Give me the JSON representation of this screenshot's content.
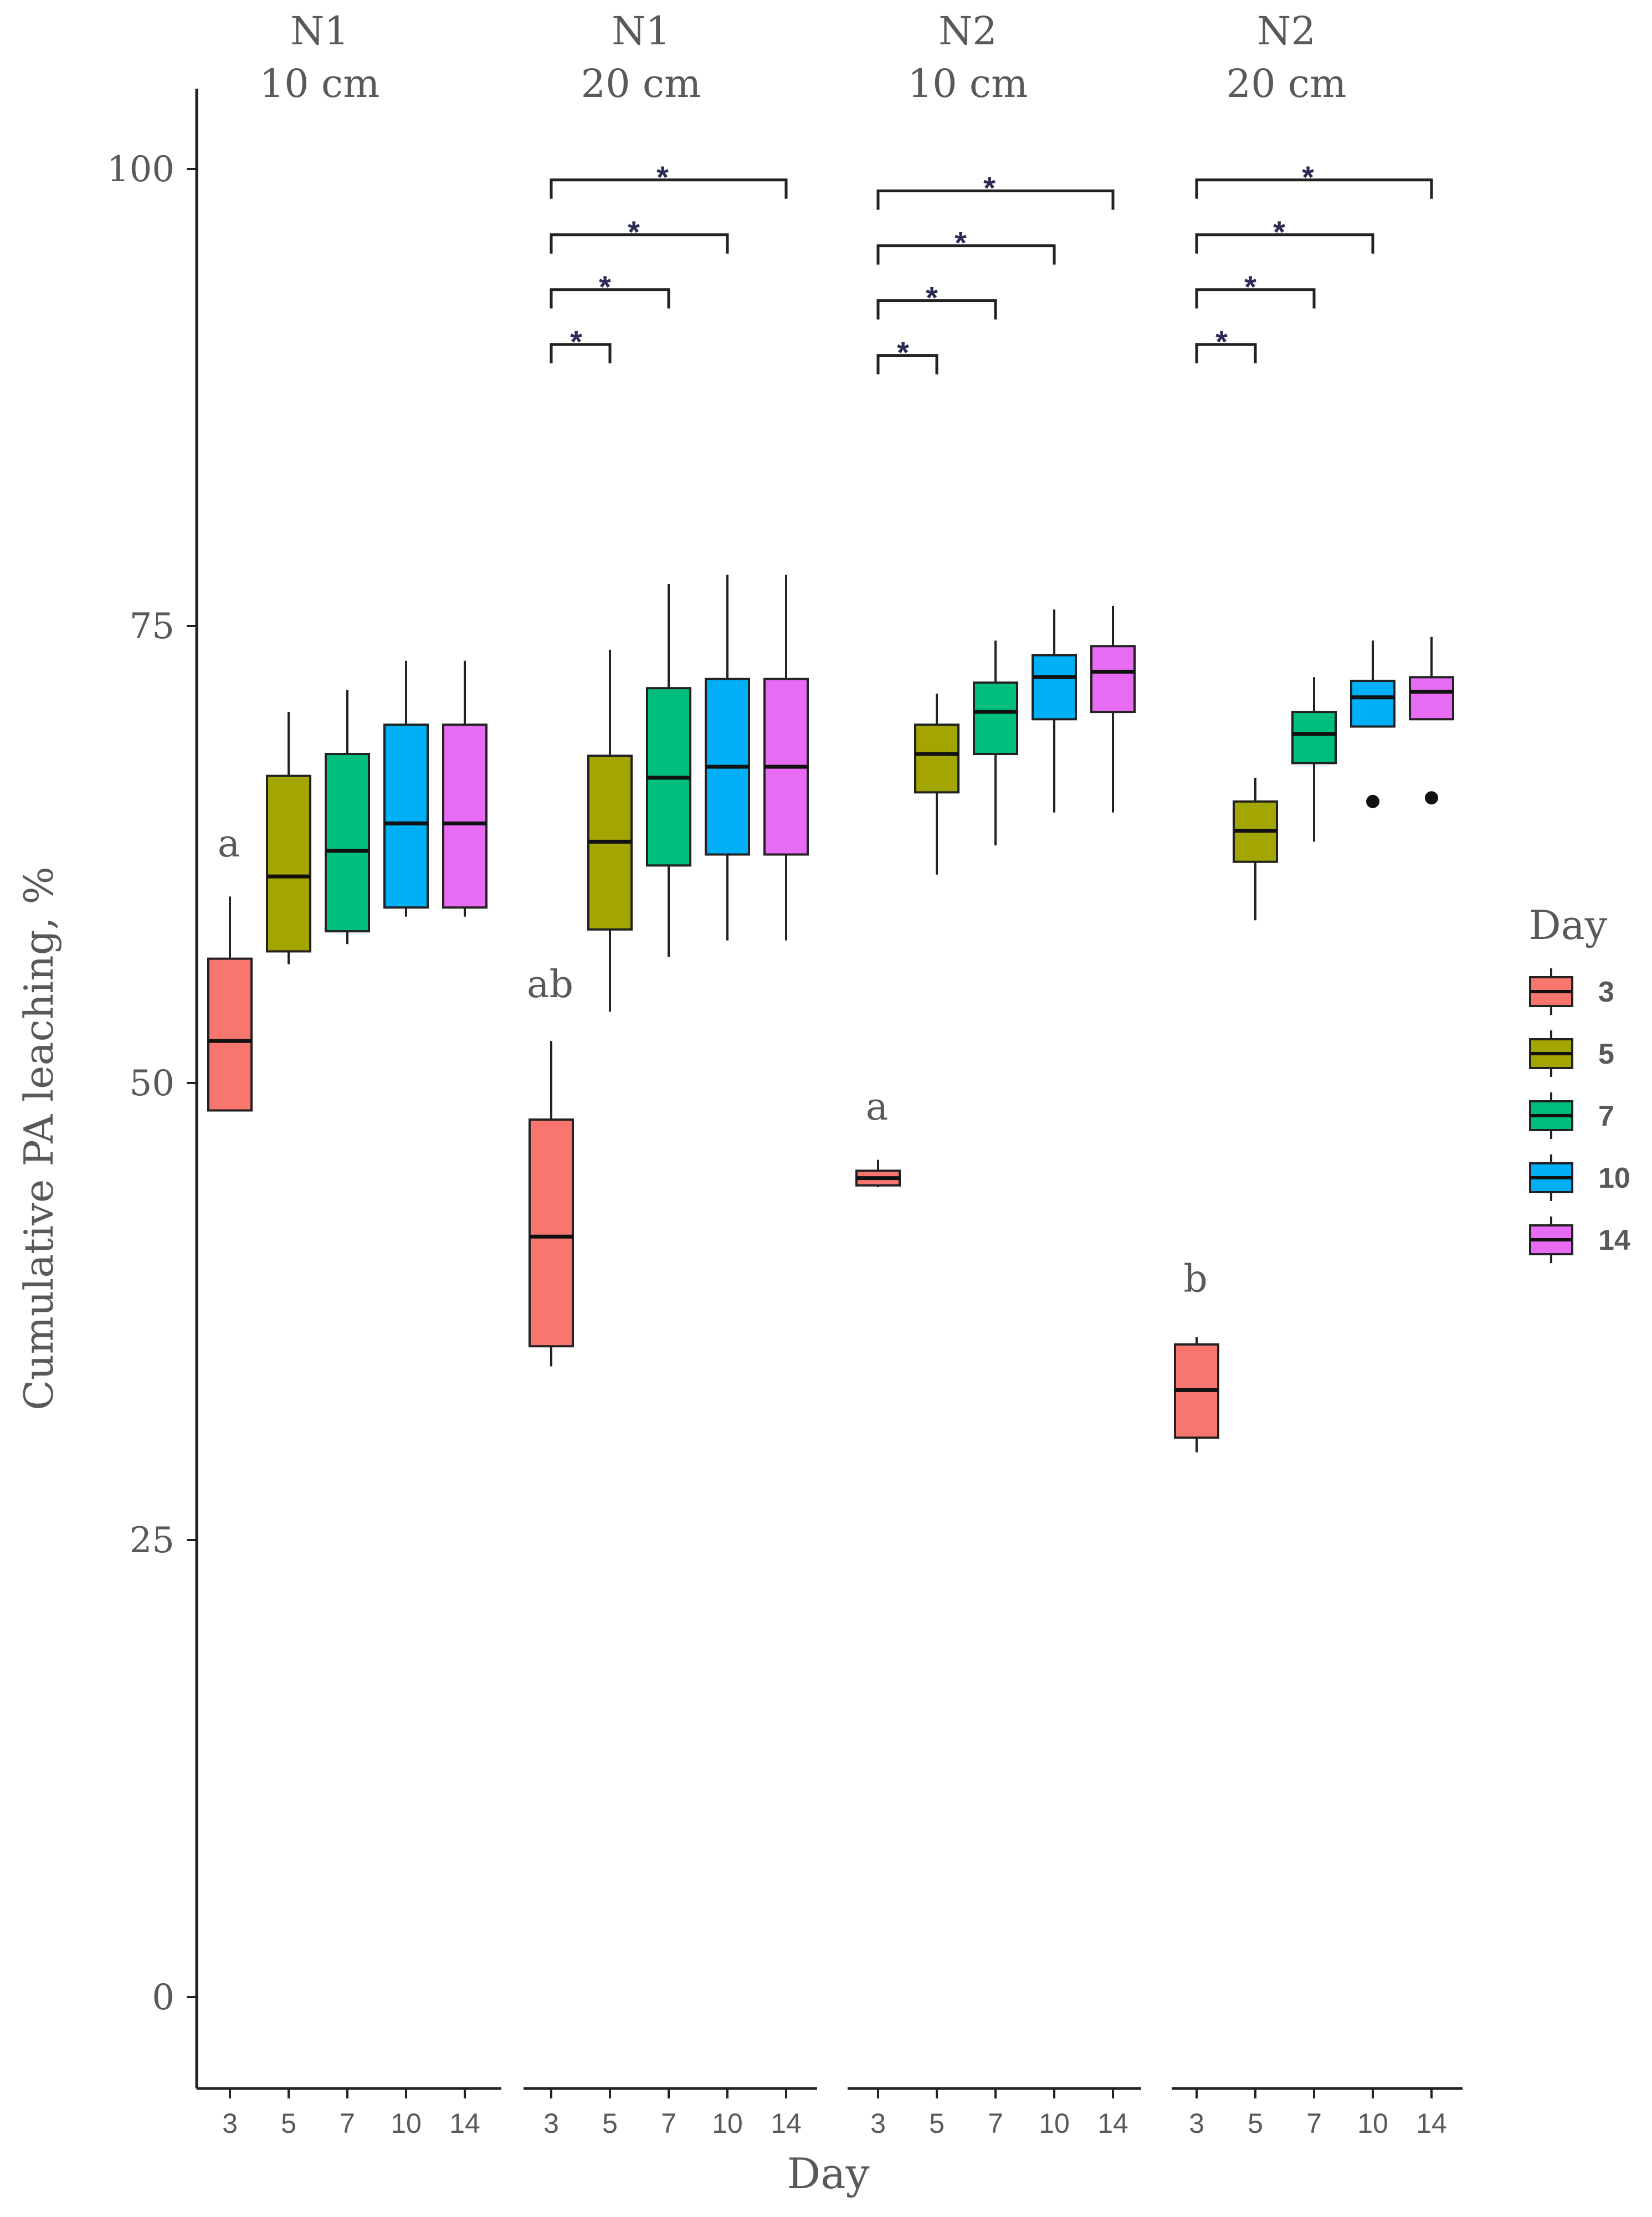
{
  "chart_data": {
    "type": "boxplot",
    "ylabel": "Cumulative  PA leaching, %",
    "xlabel": "Day",
    "ylim": [
      -5,
      105
    ],
    "y_ticks": [
      0,
      25,
      50,
      75,
      100
    ],
    "categories": [
      "3",
      "5",
      "7",
      "10",
      "14"
    ],
    "colors": {
      "3": "#f8766d",
      "5": "#a3a500",
      "7": "#00bf7d",
      "10": "#00b0f6",
      "14": "#e76bf3"
    },
    "legend": {
      "title": "Day",
      "position": "right",
      "items": [
        {
          "label": "3",
          "color": "#f8766d"
        },
        {
          "label": "5",
          "color": "#a3a500"
        },
        {
          "label": "7",
          "color": "#00bf7d"
        },
        {
          "label": "10",
          "color": "#00b0f6"
        },
        {
          "label": "14",
          "color": "#e76bf3"
        }
      ]
    },
    "panels": [
      {
        "title_line1": "N1",
        "title_line2": "10 cm",
        "letter": {
          "text": "a",
          "y": 63
        },
        "boxes": [
          {
            "day": "3",
            "min": 48.5,
            "q1": 48.5,
            "median": 52.3,
            "q3": 56.8,
            "max": 60.2
          },
          {
            "day": "5",
            "min": 56.5,
            "q1": 57.2,
            "median": 61.3,
            "q3": 66.8,
            "max": 70.3
          },
          {
            "day": "7",
            "min": 57.6,
            "q1": 58.3,
            "median": 62.7,
            "q3": 68.0,
            "max": 71.5
          },
          {
            "day": "10",
            "min": 59.1,
            "q1": 59.6,
            "median": 64.2,
            "q3": 69.6,
            "max": 73.1
          },
          {
            "day": "14",
            "min": 59.1,
            "q1": 59.6,
            "median": 64.2,
            "q3": 69.6,
            "max": 73.1
          }
        ],
        "brackets": [],
        "outliers": []
      },
      {
        "title_line1": "N1",
        "title_line2": "20 cm",
        "letter": {
          "text": "ab",
          "y": 55.3
        },
        "boxes": [
          {
            "day": "3",
            "min": 34.5,
            "q1": 35.6,
            "median": 41.6,
            "q3": 48.0,
            "max": 52.3
          },
          {
            "day": "5",
            "min": 53.9,
            "q1": 58.4,
            "median": 63.2,
            "q3": 67.9,
            "max": 73.7
          },
          {
            "day": "7",
            "min": 56.9,
            "q1": 61.9,
            "median": 66.7,
            "q3": 71.6,
            "max": 77.3
          },
          {
            "day": "10",
            "min": 57.8,
            "q1": 62.5,
            "median": 67.3,
            "q3": 72.1,
            "max": 77.8
          },
          {
            "day": "14",
            "min": 57.8,
            "q1": 62.5,
            "median": 67.3,
            "q3": 72.1,
            "max": 77.8
          }
        ],
        "brackets": [
          {
            "from": "3",
            "to": "5",
            "y": 90.4,
            "label": ""
          },
          {
            "from": "3",
            "to": "7",
            "y": 93.4,
            "label": "*"
          },
          {
            "from": "3",
            "to": "10",
            "y": 96.4,
            "label": "*"
          },
          {
            "from": "3",
            "to": "14",
            "y": 99.4,
            "label": "*"
          }
        ],
        "top_star": "*",
        "outliers": []
      },
      {
        "title_line1": "N2",
        "title_line2": "10 cm",
        "letter": {
          "text": "a",
          "y": 48.6
        },
        "boxes": [
          {
            "day": "3",
            "min": 44.3,
            "q1": 44.4,
            "median": 44.8,
            "q3": 45.2,
            "max": 45.8
          },
          {
            "day": "5",
            "min": 61.4,
            "q1": 65.9,
            "median": 68.0,
            "q3": 69.6,
            "max": 71.3
          },
          {
            "day": "7",
            "min": 63.0,
            "q1": 68.0,
            "median": 70.3,
            "q3": 71.9,
            "max": 74.2
          },
          {
            "day": "10",
            "min": 64.8,
            "q1": 69.9,
            "median": 72.2,
            "q3": 73.4,
            "max": 75.9
          },
          {
            "day": "14",
            "min": 64.8,
            "q1": 70.3,
            "median": 72.5,
            "q3": 73.9,
            "max": 76.1
          }
        ],
        "brackets": [
          {
            "from": "3",
            "to": "5",
            "y": 89.8,
            "label": ""
          },
          {
            "from": "3",
            "to": "7",
            "y": 92.8,
            "label": "*"
          },
          {
            "from": "3",
            "to": "10",
            "y": 95.8,
            "label": "*"
          },
          {
            "from": "3",
            "to": "14",
            "y": 98.8,
            "label": "*"
          }
        ],
        "top_star": "*",
        "outliers": []
      },
      {
        "title_line1": "N2",
        "title_line2": "20 cm",
        "letter": {
          "text": "b",
          "y": 39.2
        },
        "boxes": [
          {
            "day": "3",
            "min": 29.8,
            "q1": 30.6,
            "median": 33.2,
            "q3": 35.7,
            "max": 36.1
          },
          {
            "day": "5",
            "min": 58.9,
            "q1": 62.1,
            "median": 63.8,
            "q3": 65.4,
            "max": 66.7
          },
          {
            "day": "7",
            "min": 63.2,
            "q1": 67.5,
            "median": 69.1,
            "q3": 70.3,
            "max": 72.2
          },
          {
            "day": "10",
            "min": 69.5,
            "q1": 69.5,
            "median": 71.1,
            "q3": 72.0,
            "max": 74.2
          },
          {
            "day": "14",
            "min": 69.9,
            "q1": 69.9,
            "median": 71.4,
            "q3": 72.2,
            "max": 74.4
          }
        ],
        "brackets": [
          {
            "from": "3",
            "to": "5",
            "y": 90.4,
            "label": ""
          },
          {
            "from": "3",
            "to": "7",
            "y": 93.4,
            "label": "*"
          },
          {
            "from": "3",
            "to": "10",
            "y": 96.4,
            "label": "*"
          },
          {
            "from": "3",
            "to": "14",
            "y": 99.4,
            "label": "*"
          }
        ],
        "top_star": "*",
        "outliers": [
          {
            "day": "10",
            "value": 65.4
          },
          {
            "day": "14",
            "value": 65.6
          }
        ]
      }
    ]
  }
}
